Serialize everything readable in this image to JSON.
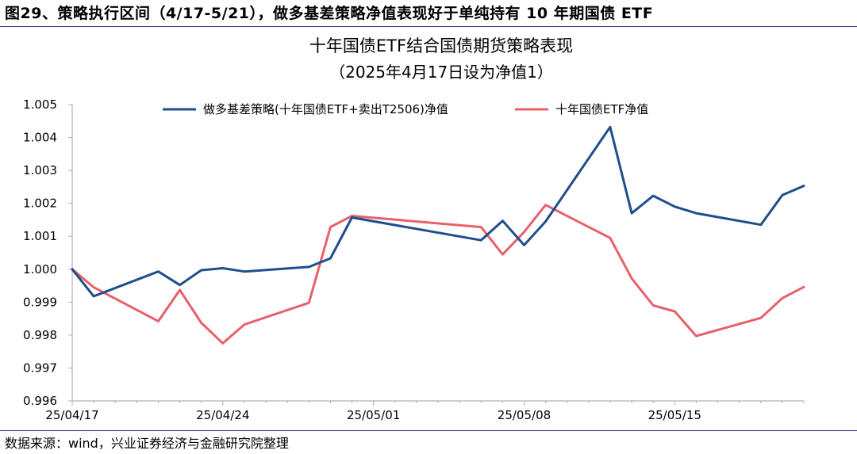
{
  "figure": {
    "caption": "图29、策略执行区间（4/17-5/21），做多基差策略净值表现好于单纯持有 10 年期国债 ETF",
    "source": "数据来源：wind，兴业证券经济与金融研究院整理"
  },
  "chart_data": {
    "type": "line",
    "title": "十年国债ETF结合国债期货策略表现",
    "subtitle": "（2025年4月17日设为净值1）",
    "xlabel": "",
    "ylabel": "",
    "x_tick_labels": [
      "25/04/17",
      "25/04/24",
      "25/05/01",
      "25/05/08",
      "25/05/15"
    ],
    "y_tick_labels": [
      "0.996",
      "0.997",
      "0.998",
      "0.999",
      "1.000",
      "1.001",
      "1.002",
      "1.003",
      "1.004",
      "1.005"
    ],
    "ylim": [
      0.996,
      1.005
    ],
    "xlim": [
      "2025-04-17",
      "2025-05-21"
    ],
    "grid": false,
    "legend_position": "top",
    "colors": {
      "series_1": "#1f4e8c",
      "series_2": "#e8606a",
      "axis": "#b0b0b0"
    },
    "series": [
      {
        "name": "做多基差策略(十年国债ETF+卖出T2506)净值",
        "x": [
          "2025-04-17",
          "2025-04-18",
          "2025-04-21",
          "2025-04-22",
          "2025-04-23",
          "2025-04-24",
          "2025-04-25",
          "2025-04-28",
          "2025-04-29",
          "2025-04-30",
          "2025-05-06",
          "2025-05-07",
          "2025-05-08",
          "2025-05-09",
          "2025-05-12",
          "2025-05-13",
          "2025-05-14",
          "2025-05-15",
          "2025-05-16",
          "2025-05-19",
          "2025-05-20",
          "2025-05-21"
        ],
        "values": [
          1.0,
          0.99918,
          0.99993,
          0.99952,
          0.99997,
          1.00003,
          0.99993,
          1.00007,
          1.00033,
          1.00157,
          1.00088,
          1.00147,
          1.00073,
          1.00145,
          1.00432,
          1.0017,
          1.00223,
          1.0019,
          1.0017,
          1.00135,
          1.00225,
          1.00253
        ]
      },
      {
        "name": "十年国债ETF净值",
        "x": [
          "2025-04-17",
          "2025-04-18",
          "2025-04-21",
          "2025-04-22",
          "2025-04-23",
          "2025-04-24",
          "2025-04-25",
          "2025-04-28",
          "2025-04-29",
          "2025-04-30",
          "2025-05-06",
          "2025-05-07",
          "2025-05-08",
          "2025-05-09",
          "2025-05-12",
          "2025-05-13",
          "2025-05-14",
          "2025-05-15",
          "2025-05-16",
          "2025-05-19",
          "2025-05-20",
          "2025-05-21"
        ],
        "values": [
          1.0,
          0.99945,
          0.99842,
          0.99937,
          0.99837,
          0.99775,
          0.99832,
          0.99898,
          1.00128,
          1.00162,
          1.00128,
          1.00045,
          1.00113,
          1.00195,
          1.00095,
          0.99972,
          0.9989,
          0.99872,
          0.99797,
          0.99852,
          0.99912,
          0.99946
        ]
      }
    ]
  }
}
